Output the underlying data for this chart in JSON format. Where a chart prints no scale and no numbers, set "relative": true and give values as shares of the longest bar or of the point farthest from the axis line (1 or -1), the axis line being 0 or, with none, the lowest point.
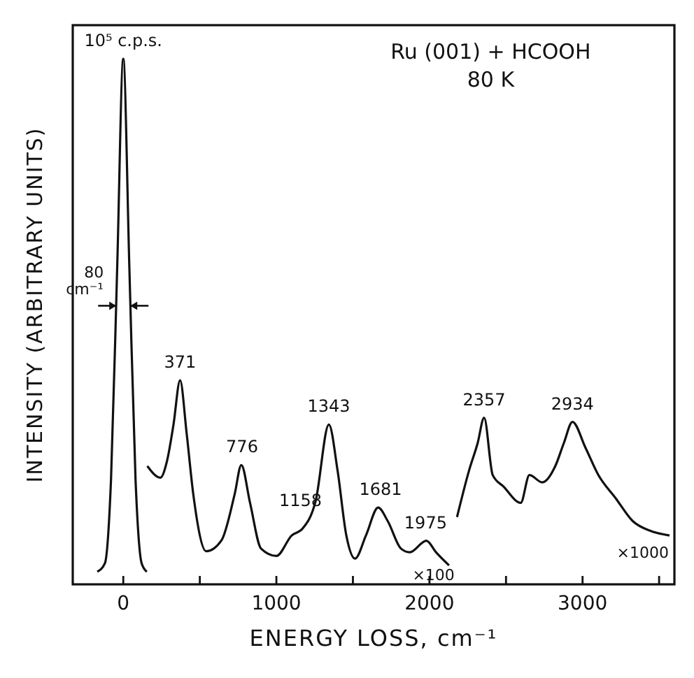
{
  "chart_data": {
    "type": "line",
    "title": "Ru (001) + HCOOH",
    "subtitle": "80 K",
    "xlabel": "ENERGY LOSS, cm⁻¹",
    "ylabel": "INTENSITY (ARBITRARY UNITS)",
    "relative": true,
    "xlim": [
      -330,
      3600
    ],
    "xticks": [
      0,
      {
        "value": 500,
        "label": null
      },
      1000,
      {
        "value": 1500,
        "label": null
      },
      2000,
      {
        "value": 2500,
        "label": null
      },
      3000,
      {
        "value": 3500,
        "label": null
      }
    ],
    "grid": false,
    "marker": "none",
    "line_style": "solid",
    "series": [
      {
        "color": "#111111",
        "x": [
          -170,
          -120,
          -80,
          -40,
          0,
          40,
          80,
          120,
          154
        ],
        "values": [
          0.024,
          0.04,
          0.2,
          0.6,
          1,
          0.6,
          0.2,
          0.04,
          0.024
        ]
      },
      {
        "color": "#111111",
        "x": [
          157,
          242,
          285,
          328,
          371,
          414,
          457,
          542,
          642,
          728,
          771,
          828,
          900,
          1000,
          1100,
          1171,
          1257,
          1343,
          1400,
          1457,
          1514,
          1585,
          1665,
          1728,
          1814,
          1871,
          1980,
          2043,
          2128
        ],
        "values": [
          0.225,
          0.203,
          0.234,
          0.304,
          0.388,
          0.287,
          0.172,
          0.063,
          0.084,
          0.172,
          0.227,
          0.155,
          0.068,
          0.054,
          0.093,
          0.106,
          0.159,
          0.304,
          0.216,
          0.093,
          0.049,
          0.093,
          0.146,
          0.12,
          0.068,
          0.061,
          0.083,
          0.061,
          0.036
        ]
      },
      {
        "color": "#111111",
        "x": [
          2180,
          2258,
          2315,
          2357,
          2413,
          2484,
          2596,
          2653,
          2737,
          2822,
          2878,
          2934,
          3019,
          3103,
          3216,
          3329,
          3441,
          3568
        ],
        "values": [
          0.128,
          0.216,
          0.269,
          0.317,
          0.208,
          0.186,
          0.155,
          0.208,
          0.194,
          0.225,
          0.269,
          0.309,
          0.26,
          0.208,
          0.164,
          0.12,
          0.102,
          0.093
        ]
      }
    ],
    "annotations": [
      {
        "text": "10⁵ c.p.s.",
        "x": 0,
        "y": 1
      },
      {
        "text": "80\ncm⁻¹",
        "x": 0,
        "y": 0.53
      },
      {
        "text": "371",
        "x": 371,
        "y": 0.388
      },
      {
        "text": "776",
        "x": 776,
        "y": 0.227
      },
      {
        "text": "1158",
        "x": 1158,
        "y": 0.125
      },
      {
        "text": "1343",
        "x": 1343,
        "y": 0.304
      },
      {
        "text": "1681",
        "x": 1681,
        "y": 0.146
      },
      {
        "text": "1975",
        "x": 1975,
        "y": 0.083
      },
      {
        "text": "2357",
        "x": 2357,
        "y": 0.317
      },
      {
        "text": "2934",
        "x": 2934,
        "y": 0.309
      },
      "×100",
      "×1000"
    ]
  }
}
